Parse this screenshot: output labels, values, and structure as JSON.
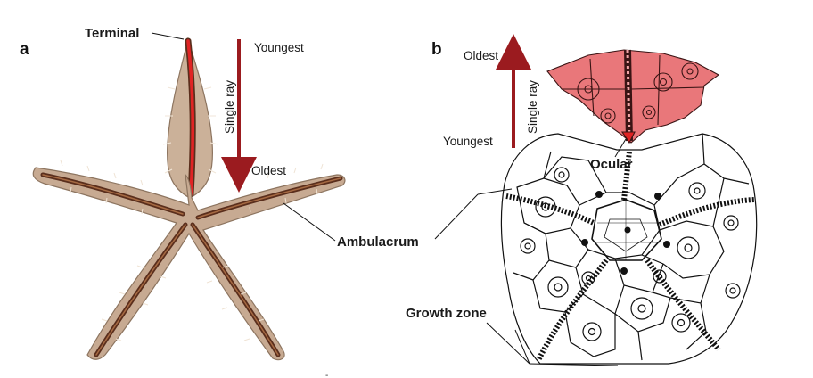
{
  "panel_a": {
    "letter": "a",
    "terminal_label": "Terminal",
    "youngest_label": "Youngest",
    "oldest_label": "Oldest",
    "axis_label": "Single ray",
    "ambulacrum_label": "Ambulacrum"
  },
  "panel_b": {
    "letter": "b",
    "oldest_label": "Oldest",
    "youngest_label": "Youngest",
    "axis_label": "Single ray",
    "ocular_label": "Ocular",
    "growth_zone_label": "Growth zone"
  },
  "colors": {
    "arrow": "#9b1b1f",
    "ray_highlight": "#e02424",
    "plate_fill": "#e9777a",
    "starfish_body": "#c7aa92",
    "ambulacral_groove": "#5a2e1c"
  }
}
